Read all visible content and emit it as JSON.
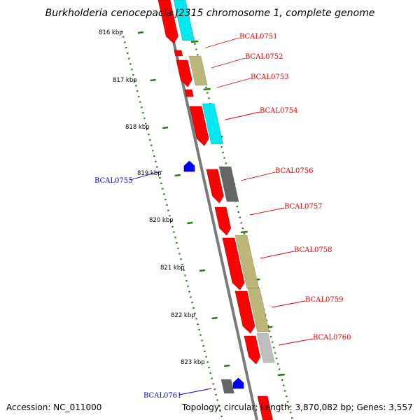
{
  "title": "Burkholderia cenocepacia J2315 chromosome 1, complete genome",
  "accession": "Accession: NC_011000",
  "topology": "Topology: circular; Length: 3,870,082 bp; Genes: 3,557",
  "colors": {
    "backbone": "#7a7a7a",
    "tick": "#2a7a1a",
    "cds": "#ff0000",
    "cyan": "#00e8f0",
    "khaki": "#bdb679",
    "darkgray": "#666666",
    "lightgray": "#bfbfbf",
    "blue": "#0000ff",
    "label_red": "#dd0000",
    "label_blue": "#0000cc"
  },
  "scale_labels": [
    "816 kbp",
    "817 kbp",
    "818 kbp",
    "819 kbp",
    "820 kbp",
    "821 kbp",
    "822 kbp",
    "823 kbp"
  ],
  "gene_labels": [
    {
      "text": "BCAL0751",
      "side": "right",
      "color": "red"
    },
    {
      "text": "BCAL0752",
      "side": "right",
      "color": "red"
    },
    {
      "text": "BCAL0753",
      "side": "right",
      "color": "red"
    },
    {
      "text": "BCAL0754",
      "side": "right",
      "color": "red"
    },
    {
      "text": "BCAL0755",
      "side": "left",
      "color": "blue"
    },
    {
      "text": "BCAL0756",
      "side": "right",
      "color": "red"
    },
    {
      "text": "BCAL0757",
      "side": "right",
      "color": "red"
    },
    {
      "text": "BCAL0758",
      "side": "right",
      "color": "red"
    },
    {
      "text": "BCAL0759",
      "side": "right",
      "color": "red"
    },
    {
      "text": "BCAL0760",
      "side": "right",
      "color": "red"
    },
    {
      "text": "BCAL0761",
      "side": "left",
      "color": "blue"
    }
  ]
}
